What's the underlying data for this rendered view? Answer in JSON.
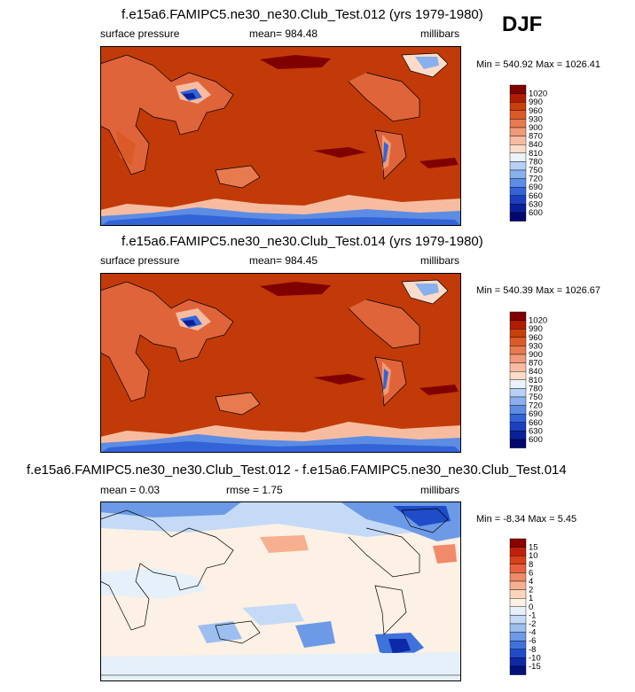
{
  "season": "DJF",
  "colors": {
    "ocean_high": "#c23a08",
    "land": "#e0643a",
    "coast": "#000000",
    "blue_deep": "#0b1b8f"
  },
  "panels": [
    {
      "title": "f.e15a6.FAMIPC5.ne30_ne30.Club_Test.012 (yrs 1979-1980)",
      "left_label": "surface pressure",
      "mean_label": "mean= 984.48",
      "units": "millibars",
      "minmax": "Min = 540.92 Max = 1026.41",
      "colorbar_labels": [
        "1020",
        "990",
        "960",
        "930",
        "900",
        "870",
        "840",
        "810",
        "780",
        "750",
        "720",
        "690",
        "660",
        "630",
        "600"
      ],
      "colorbar_colors": [
        "#800000",
        "#b01c00",
        "#c8400c",
        "#dc5a28",
        "#e87a50",
        "#f09a78",
        "#f7bca0",
        "#fcdcc8",
        "#eaf2fb",
        "#b8d0f4",
        "#88b0ec",
        "#5c8ce4",
        "#3264d8",
        "#1a40c0",
        "#0a2098",
        "#020870"
      ]
    },
    {
      "title": "f.e15a6.FAMIPC5.ne30_ne30.Club_Test.014 (yrs 1979-1980)",
      "left_label": "surface pressure",
      "mean_label": "mean= 984.45",
      "units": "millibars",
      "minmax": "Min = 540.39 Max = 1026.67",
      "colorbar_labels": [
        "1020",
        "990",
        "960",
        "930",
        "900",
        "870",
        "840",
        "810",
        "780",
        "750",
        "720",
        "690",
        "660",
        "630",
        "600"
      ],
      "colorbar_colors": [
        "#800000",
        "#b01c00",
        "#c8400c",
        "#dc5a28",
        "#e87a50",
        "#f09a78",
        "#f7bca0",
        "#fcdcc8",
        "#eaf2fb",
        "#b8d0f4",
        "#88b0ec",
        "#5c8ce4",
        "#3264d8",
        "#1a40c0",
        "#0a2098",
        "#020870"
      ]
    },
    {
      "title": "f.e15a6.FAMIPC5.ne30_ne30.Club_Test.012 - f.e15a6.FAMIPC5.ne30_ne30.Club_Test.014",
      "left_label": "mean =   0.03",
      "mean_label": "rmse =   1.75",
      "units": "millibars",
      "minmax": "Min =  -8.34 Max =   5.45",
      "colorbar_labels": [
        "15",
        "10",
        "8",
        "6",
        "4",
        "2",
        "1",
        "0",
        "-1",
        "-2",
        "-4",
        "-6",
        "-8",
        "-10",
        "-15"
      ],
      "colorbar_colors": [
        "#8b0000",
        "#c0200a",
        "#d8401a",
        "#e86040",
        "#f08a68",
        "#f6b090",
        "#fbd4bc",
        "#fdf0e4",
        "#e6f0fb",
        "#c4daf6",
        "#9cbff0",
        "#6c9ae6",
        "#3f72da",
        "#1f4cc8",
        "#0c2aa8",
        "#02127c"
      ]
    }
  ],
  "chart_data": [
    {
      "type": "heatmap",
      "title": "f.e15a6.FAMIPC5.ne30_ne30.Club_Test.012 (yrs 1979-1980)",
      "variable": "surface pressure",
      "units": "millibars",
      "mean": 984.48,
      "min": 540.92,
      "max": 1026.41,
      "levels": [
        600,
        630,
        660,
        690,
        720,
        750,
        780,
        810,
        840,
        870,
        900,
        930,
        960,
        990,
        1020
      ],
      "projection": "cylindrical equidistant, centered on Pacific"
    },
    {
      "type": "heatmap",
      "title": "f.e15a6.FAMIPC5.ne30_ne30.Club_Test.014 (yrs 1979-1980)",
      "variable": "surface pressure",
      "units": "millibars",
      "mean": 984.45,
      "min": 540.39,
      "max": 1026.67,
      "levels": [
        600,
        630,
        660,
        690,
        720,
        750,
        780,
        810,
        840,
        870,
        900,
        930,
        960,
        990,
        1020
      ],
      "projection": "cylindrical equidistant, centered on Pacific"
    },
    {
      "type": "heatmap",
      "title": "f.e15a6.FAMIPC5.ne30_ne30.Club_Test.012 - f.e15a6.FAMIPC5.ne30_ne30.Club_Test.014",
      "units": "millibars",
      "mean": 0.03,
      "rmse": 1.75,
      "min": -8.34,
      "max": 5.45,
      "levels": [
        -15,
        -10,
        -8,
        -6,
        -4,
        -2,
        -1,
        0,
        1,
        2,
        4,
        6,
        8,
        10,
        15
      ]
    }
  ]
}
